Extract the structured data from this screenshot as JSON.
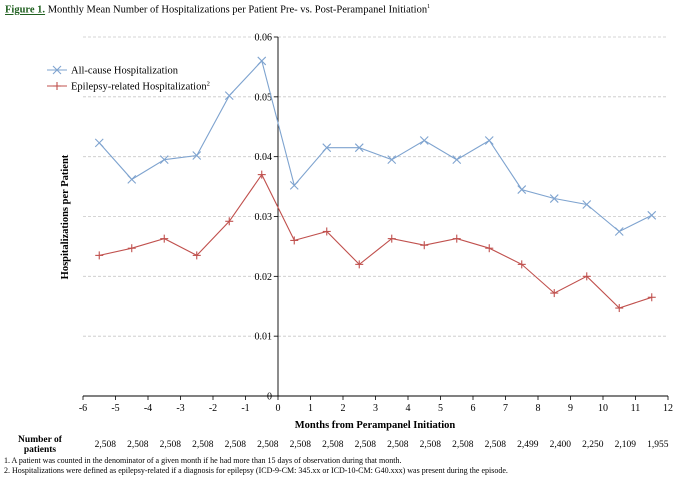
{
  "figure": {
    "label": "Figure 1.",
    "title": " Monthly Mean Number of Hospitalizations per Patient Pre- vs. Post-Perampanel Initiation",
    "title_sup": "1"
  },
  "chart_data": {
    "type": "line",
    "xlabel": "Months from Perampanel Initiation",
    "ylabel": "Hospitalizations per Patient",
    "xlim": [
      -6,
      12
    ],
    "ylim": [
      0,
      0.06
    ],
    "xticks": [
      -6,
      -5,
      -4,
      -3,
      -2,
      -1,
      0,
      1,
      2,
      3,
      4,
      5,
      6,
      7,
      8,
      9,
      10,
      11,
      12
    ],
    "xtick_labels": [
      "-6",
      "-5",
      "-4",
      "-3",
      "-2",
      "-1",
      "0",
      "1",
      "2",
      "3",
      "4",
      "5",
      "6",
      "7",
      "8",
      "9",
      "10",
      "11",
      "12"
    ],
    "yticks": [
      0,
      0.01,
      0.02,
      0.03,
      0.04,
      0.05,
      0.06
    ],
    "ytick_labels": [
      "0",
      "0.01",
      "0.02",
      "0.03",
      "0.04",
      "0.05",
      "0.06"
    ],
    "grid": true,
    "legend_position": "top-left",
    "x": [
      -5.5,
      -4.5,
      -3.5,
      -2.5,
      -1.5,
      -0.5,
      0.5,
      1.5,
      2.5,
      3.5,
      4.5,
      5.5,
      6.5,
      7.5,
      8.5,
      9.5,
      10.5,
      11.5
    ],
    "series": [
      {
        "name": "All-cause Hospitalization",
        "name_sup": "",
        "color": "#7ea3cf",
        "marker": "x",
        "values": [
          0.0423,
          0.0362,
          0.0395,
          0.0402,
          0.0502,
          0.056,
          0.0352,
          0.0415,
          0.0415,
          0.0395,
          0.0427,
          0.0395,
          0.0427,
          0.0345,
          0.033,
          0.032,
          0.0275,
          0.0302
        ]
      },
      {
        "name": "Epilepsy-related Hospitalization",
        "name_sup": "2",
        "color": "#c0504d",
        "marker": "+",
        "values": [
          0.0235,
          0.0247,
          0.0263,
          0.0235,
          0.0292,
          0.037,
          0.026,
          0.0275,
          0.022,
          0.0263,
          0.0252,
          0.0263,
          0.0247,
          0.022,
          0.0172,
          0.02,
          0.0147,
          0.0165
        ]
      }
    ],
    "patients_label": [
      "Number of",
      "patients"
    ],
    "patients": [
      "2,508",
      "2,508",
      "2,508",
      "2,508",
      "2,508",
      "2,508",
      "2,508",
      "2,508",
      "2,508",
      "2,508",
      "2,508",
      "2,508",
      "2,508",
      "2,499",
      "2,400",
      "2,250",
      "2,109",
      "1,955"
    ]
  },
  "footnotes": [
    "1. A patient was counted in the denominator of a given month if he had more than 15 days of observation during that month.",
    "2. Hospitalizations were defined as epilepsy-related if a diagnosis for epilepsy (ICD-9-CM: 345.xx or ICD-10-CM: G40.xxx) was present during the episode."
  ]
}
